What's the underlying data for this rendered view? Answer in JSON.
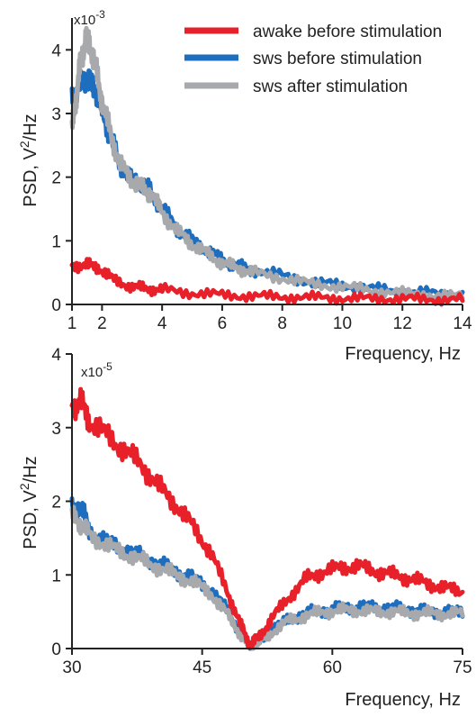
{
  "colors": {
    "awake": "#e8202a",
    "sws_before": "#1e6ec0",
    "sws_after": "#a7a9ac"
  },
  "legend": [
    {
      "name": "awake before stimulation",
      "color": "#e8202a"
    },
    {
      "name": "sws before stimulation",
      "color": "#1e6ec0"
    },
    {
      "name": "sws after stimulation",
      "color": "#a7a9ac"
    }
  ],
  "chart_data": [
    {
      "type": "line",
      "title": "",
      "xlabel": "Frequency, Hz",
      "ylabel_prefix": "PSD, V",
      "ylabel_sup": "2",
      "ylabel_suffix": "/Hz",
      "exponent_base": "x10",
      "exponent_power": "-3",
      "xlim": [
        1,
        14
      ],
      "ylim": [
        0,
        4.5
      ],
      "xticks": [
        1,
        2,
        4,
        6,
        8,
        10,
        12,
        14
      ],
      "yticks": [
        0,
        1,
        2,
        3,
        4
      ],
      "legend_position": "top-right",
      "series": [
        {
          "name": "awake before stimulation",
          "color": "#e8202a",
          "x": [
            1.0,
            1.5,
            1.9,
            2.4,
            3.0,
            3.5,
            4.0,
            5.0,
            6.0,
            7.0,
            8.0,
            9.0,
            10.0,
            11.0,
            12.0,
            13.0,
            14.0
          ],
          "y": [
            0.62,
            0.62,
            0.58,
            0.38,
            0.28,
            0.25,
            0.23,
            0.18,
            0.15,
            0.13,
            0.12,
            0.11,
            0.1,
            0.09,
            0.09,
            0.08,
            0.08
          ]
        },
        {
          "name": "sws before stimulation",
          "color": "#1e6ec0",
          "x": [
            1.0,
            1.2,
            1.4,
            1.6,
            1.8,
            2.0,
            2.3,
            2.6,
            3.0,
            3.3,
            3.6,
            4.0,
            4.5,
            5.0,
            5.5,
            6.0,
            6.5,
            7.0,
            8.0,
            9.0,
            10.0,
            11.0,
            12.0,
            13.0,
            14.0
          ],
          "y": [
            3.2,
            3.4,
            3.55,
            3.5,
            3.35,
            3.05,
            2.6,
            2.2,
            1.95,
            1.9,
            1.8,
            1.5,
            1.2,
            1.0,
            0.85,
            0.7,
            0.6,
            0.55,
            0.45,
            0.35,
            0.3,
            0.25,
            0.2,
            0.18,
            0.15
          ]
        },
        {
          "name": "sws after stimulation",
          "color": "#a7a9ac",
          "x": [
            1.0,
            1.15,
            1.3,
            1.45,
            1.6,
            1.8,
            2.0,
            2.3,
            2.6,
            3.0,
            3.3,
            3.6,
            4.0,
            4.5,
            5.0,
            5.5,
            6.0,
            6.5,
            7.0,
            8.0,
            9.0,
            10.0,
            11.0,
            12.0,
            13.0,
            14.0
          ],
          "y": [
            2.75,
            3.3,
            3.85,
            4.15,
            4.1,
            3.7,
            3.2,
            2.65,
            2.2,
            1.95,
            1.85,
            1.75,
            1.45,
            1.15,
            0.95,
            0.8,
            0.65,
            0.58,
            0.5,
            0.42,
            0.32,
            0.28,
            0.22,
            0.18,
            0.15,
            0.13
          ]
        }
      ]
    },
    {
      "type": "line",
      "title": "",
      "xlabel": "Frequency, Hz",
      "ylabel_prefix": "PSD, V",
      "ylabel_sup": "2",
      "ylabel_suffix": "/Hz",
      "exponent_base": "x10",
      "exponent_power": "-5",
      "xlim": [
        30,
        75
      ],
      "ylim": [
        0,
        4
      ],
      "xticks": [
        30,
        45,
        60,
        75
      ],
      "yticks": [
        0,
        1,
        2,
        3,
        4
      ],
      "series": [
        {
          "name": "awake before stimulation",
          "color": "#e8202a",
          "x": [
            30,
            31,
            32,
            34,
            36,
            38,
            40,
            42,
            44,
            46,
            48,
            49.5,
            50.5,
            51.5,
            53,
            55,
            57,
            59,
            61,
            63,
            65,
            67,
            69,
            71,
            73,
            75
          ],
          "y": [
            3.3,
            3.35,
            3.1,
            2.9,
            2.7,
            2.5,
            2.2,
            1.95,
            1.65,
            1.3,
            0.75,
            0.3,
            0.05,
            0.15,
            0.4,
            0.7,
            0.95,
            1.05,
            1.1,
            1.12,
            1.05,
            1.0,
            0.95,
            0.88,
            0.82,
            0.78
          ]
        },
        {
          "name": "sws before stimulation",
          "color": "#1e6ec0",
          "x": [
            30,
            31,
            32,
            34,
            36,
            38,
            40,
            42,
            44,
            46,
            48,
            49.5,
            50.5,
            51.5,
            53,
            55,
            57,
            59,
            61,
            63,
            65,
            67,
            69,
            71,
            73,
            75
          ],
          "y": [
            1.9,
            1.95,
            1.6,
            1.45,
            1.35,
            1.25,
            1.15,
            1.05,
            0.95,
            0.8,
            0.5,
            0.2,
            0.03,
            0.1,
            0.25,
            0.4,
            0.48,
            0.52,
            0.55,
            0.57,
            0.56,
            0.55,
            0.53,
            0.5,
            0.5,
            0.5
          ]
        },
        {
          "name": "sws after stimulation",
          "color": "#a7a9ac",
          "x": [
            30,
            31,
            32,
            34,
            36,
            38,
            40,
            42,
            44,
            46,
            48,
            49.5,
            50.5,
            51.5,
            53,
            55,
            57,
            59,
            61,
            63,
            65,
            67,
            69,
            71,
            73,
            75
          ],
          "y": [
            1.8,
            1.7,
            1.55,
            1.4,
            1.3,
            1.2,
            1.1,
            1.0,
            0.9,
            0.75,
            0.45,
            0.18,
            0.02,
            0.08,
            0.22,
            0.38,
            0.45,
            0.5,
            0.52,
            0.52,
            0.5,
            0.5,
            0.48,
            0.48,
            0.47,
            0.48
          ]
        }
      ]
    }
  ]
}
